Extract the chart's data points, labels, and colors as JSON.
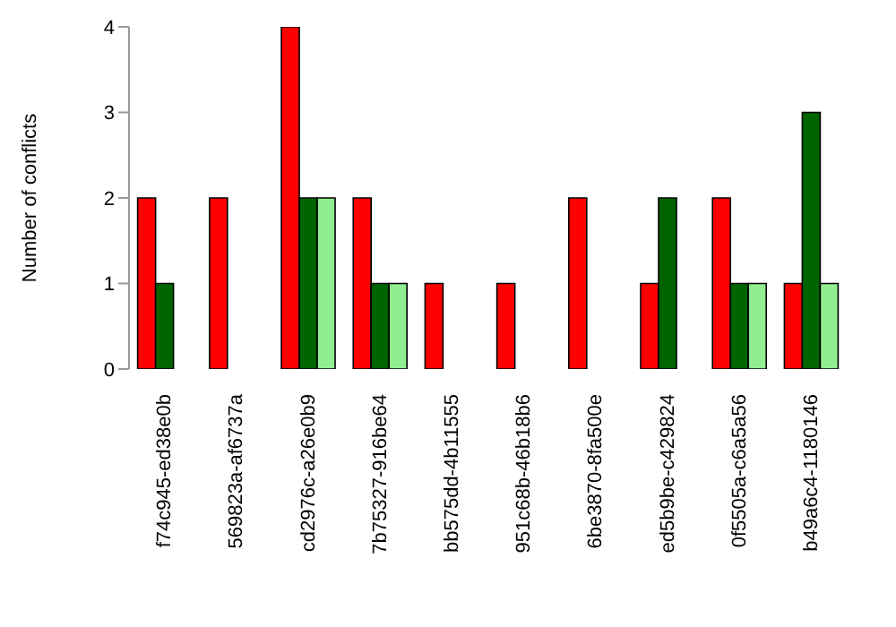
{
  "chart_data": {
    "type": "bar",
    "ylabel": "Number of conflicts",
    "categories": [
      "f74c945-ed38e0b",
      "569823a-af6737a",
      "cd2976c-a26e0b9",
      "7b75327-916be64",
      "bb575dd-4b11555",
      "951c68b-46b18b6",
      "6be3870-8fa500e",
      "ed5b9be-c429824",
      "0f5505a-c6a5a56",
      "b49a6c4-1180146"
    ],
    "series": [
      {
        "color": "#ff0000",
        "values": [
          2,
          2,
          4,
          2,
          1,
          1,
          2,
          1,
          2,
          1
        ]
      },
      {
        "color": "#006400",
        "values": [
          1,
          0,
          2,
          1,
          0,
          0,
          0,
          2,
          1,
          3
        ]
      },
      {
        "color": "#90ee90",
        "values": [
          0,
          0,
          2,
          1,
          0,
          0,
          0,
          0,
          1,
          1
        ]
      }
    ],
    "ylim": [
      0,
      4
    ],
    "yticks": [
      0,
      1,
      2,
      3,
      4
    ],
    "grid": false,
    "legend": false
  }
}
